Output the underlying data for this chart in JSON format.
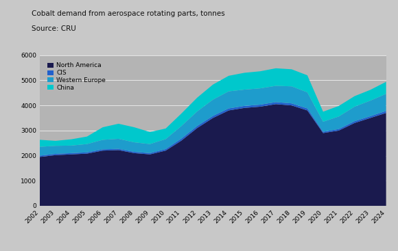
{
  "title": "Cobalt demand from aerospace rotating parts, tonnes",
  "source": "Source: CRU",
  "years": [
    2002,
    2003,
    2004,
    2005,
    2006,
    2007,
    2008,
    2009,
    2010,
    2011,
    2012,
    2013,
    2014,
    2015,
    2016,
    2017,
    2018,
    2019,
    2020,
    2021,
    2022,
    2023,
    2024
  ],
  "north_america": [
    1950,
    2020,
    2050,
    2080,
    2200,
    2220,
    2100,
    2050,
    2200,
    2600,
    3100,
    3500,
    3800,
    3900,
    3950,
    4050,
    4000,
    3800,
    2900,
    3000,
    3300,
    3500,
    3700
  ],
  "cis": [
    50,
    50,
    50,
    50,
    50,
    50,
    50,
    50,
    60,
    80,
    80,
    80,
    80,
    80,
    80,
    80,
    80,
    80,
    50,
    60,
    70,
    70,
    80
  ],
  "western_europe": [
    350,
    320,
    300,
    330,
    380,
    400,
    380,
    360,
    400,
    500,
    580,
    650,
    680,
    650,
    650,
    650,
    680,
    640,
    400,
    500,
    580,
    620,
    680
  ],
  "china": [
    280,
    200,
    250,
    300,
    500,
    600,
    600,
    480,
    420,
    500,
    550,
    600,
    620,
    670,
    680,
    700,
    680,
    680,
    400,
    420,
    420,
    430,
    480
  ],
  "colors": {
    "north_america": "#1a1a4e",
    "cis": "#2060cc",
    "western_europe": "#1e9ccc",
    "china": "#00c8cc"
  },
  "labels": {
    "north_america": "North America",
    "cis": "CIS",
    "western_europe": "Western Europe",
    "china": "China"
  },
  "ylim": [
    0,
    6000
  ],
  "yticks": [
    0,
    1000,
    2000,
    3000,
    4000,
    5000,
    6000
  ],
  "background_color": "#c8c8c8",
  "plot_bg_color": "#b4b4b4"
}
